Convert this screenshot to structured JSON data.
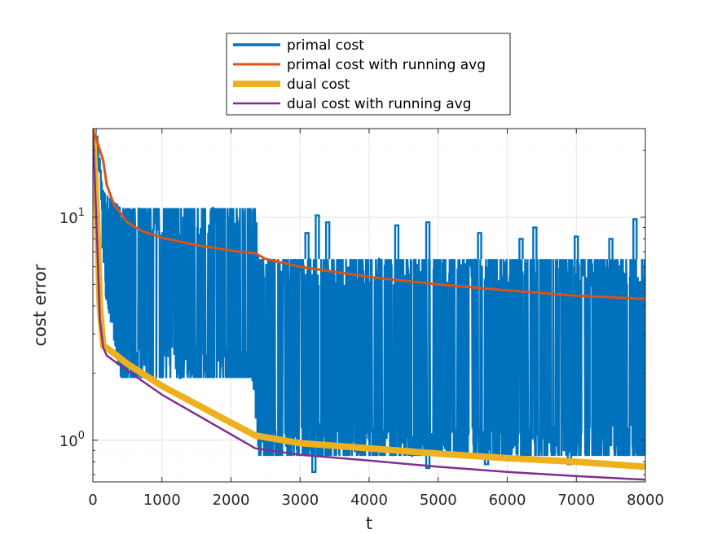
{
  "chart_data": {
    "type": "line",
    "title": "",
    "xlabel": "t",
    "ylabel": "cost error",
    "xlim": [
      0,
      8000
    ],
    "ylim": [
      0.65,
      25
    ],
    "yscale": "log",
    "grid": true,
    "legend_position": "top-center, outside",
    "x_ticks": [
      0,
      1000,
      2000,
      3000,
      4000,
      5000,
      6000,
      7000,
      8000
    ],
    "y_ticks": [
      {
        "value": 1,
        "label": "10^0",
        "base": "10",
        "exp": "0"
      },
      {
        "value": 10,
        "label": "10^1",
        "base": "10",
        "exp": "1"
      }
    ],
    "series": [
      {
        "name": "primal cost",
        "color": "#0072BD",
        "style": "noisy band",
        "upper": [
          [
            0,
            25
          ],
          [
            60,
            18
          ],
          [
            150,
            13
          ],
          [
            400,
            11
          ],
          [
            2350,
            11
          ],
          [
            2400,
            6.5
          ],
          [
            8000,
            6.5
          ]
        ],
        "lower": [
          [
            0,
            25
          ],
          [
            60,
            18
          ],
          [
            100,
            14
          ],
          [
            150,
            5
          ],
          [
            400,
            1.9
          ],
          [
            2300,
            1.9
          ],
          [
            2400,
            0.85
          ],
          [
            8000,
            0.85
          ]
        ],
        "spikes": [
          [
            3100,
            8.5
          ],
          [
            3250,
            10.2
          ],
          [
            3400,
            9.5
          ],
          [
            4400,
            9.2
          ],
          [
            4850,
            9.5
          ],
          [
            5600,
            8.5
          ],
          [
            6200,
            8
          ],
          [
            6400,
            9
          ],
          [
            7000,
            8.2
          ],
          [
            7500,
            8
          ],
          [
            7850,
            9.8
          ],
          [
            3200,
            0.72
          ],
          [
            4850,
            0.75
          ],
          [
            5700,
            0.78
          ],
          [
            6900,
            0.78
          ]
        ]
      },
      {
        "name": "primal cost with running avg",
        "color": "#D95319",
        "x": [
          0,
          150,
          200,
          300,
          500,
          700,
          1000,
          1500,
          2000,
          2350,
          2500,
          3000,
          4000,
          5000,
          6000,
          7000,
          8000
        ],
        "y": [
          25,
          18,
          14,
          11.5,
          9.5,
          8.7,
          8.1,
          7.5,
          7.1,
          6.9,
          6.5,
          6.0,
          5.4,
          5.0,
          4.7,
          4.45,
          4.3
        ]
      },
      {
        "name": "dual cost",
        "color": "#EDB120",
        "x": [
          0,
          60,
          100,
          150,
          200,
          500,
          1000,
          2350,
          3000,
          4000,
          5000,
          6000,
          7000,
          8000
        ],
        "y": [
          25,
          10,
          4,
          2.65,
          2.6,
          2.2,
          1.75,
          1.05,
          0.97,
          0.92,
          0.87,
          0.83,
          0.8,
          0.76
        ]
      },
      {
        "name": "dual cost with running avg",
        "color": "#7E2F8E",
        "x": [
          0,
          60,
          100,
          150,
          200,
          500,
          1000,
          2350,
          3000,
          4000,
          5000,
          6000,
          7000,
          8000
        ],
        "y": [
          25,
          8,
          3.5,
          2.6,
          2.4,
          2.05,
          1.6,
          0.92,
          0.86,
          0.81,
          0.76,
          0.72,
          0.69,
          0.665
        ]
      }
    ]
  }
}
